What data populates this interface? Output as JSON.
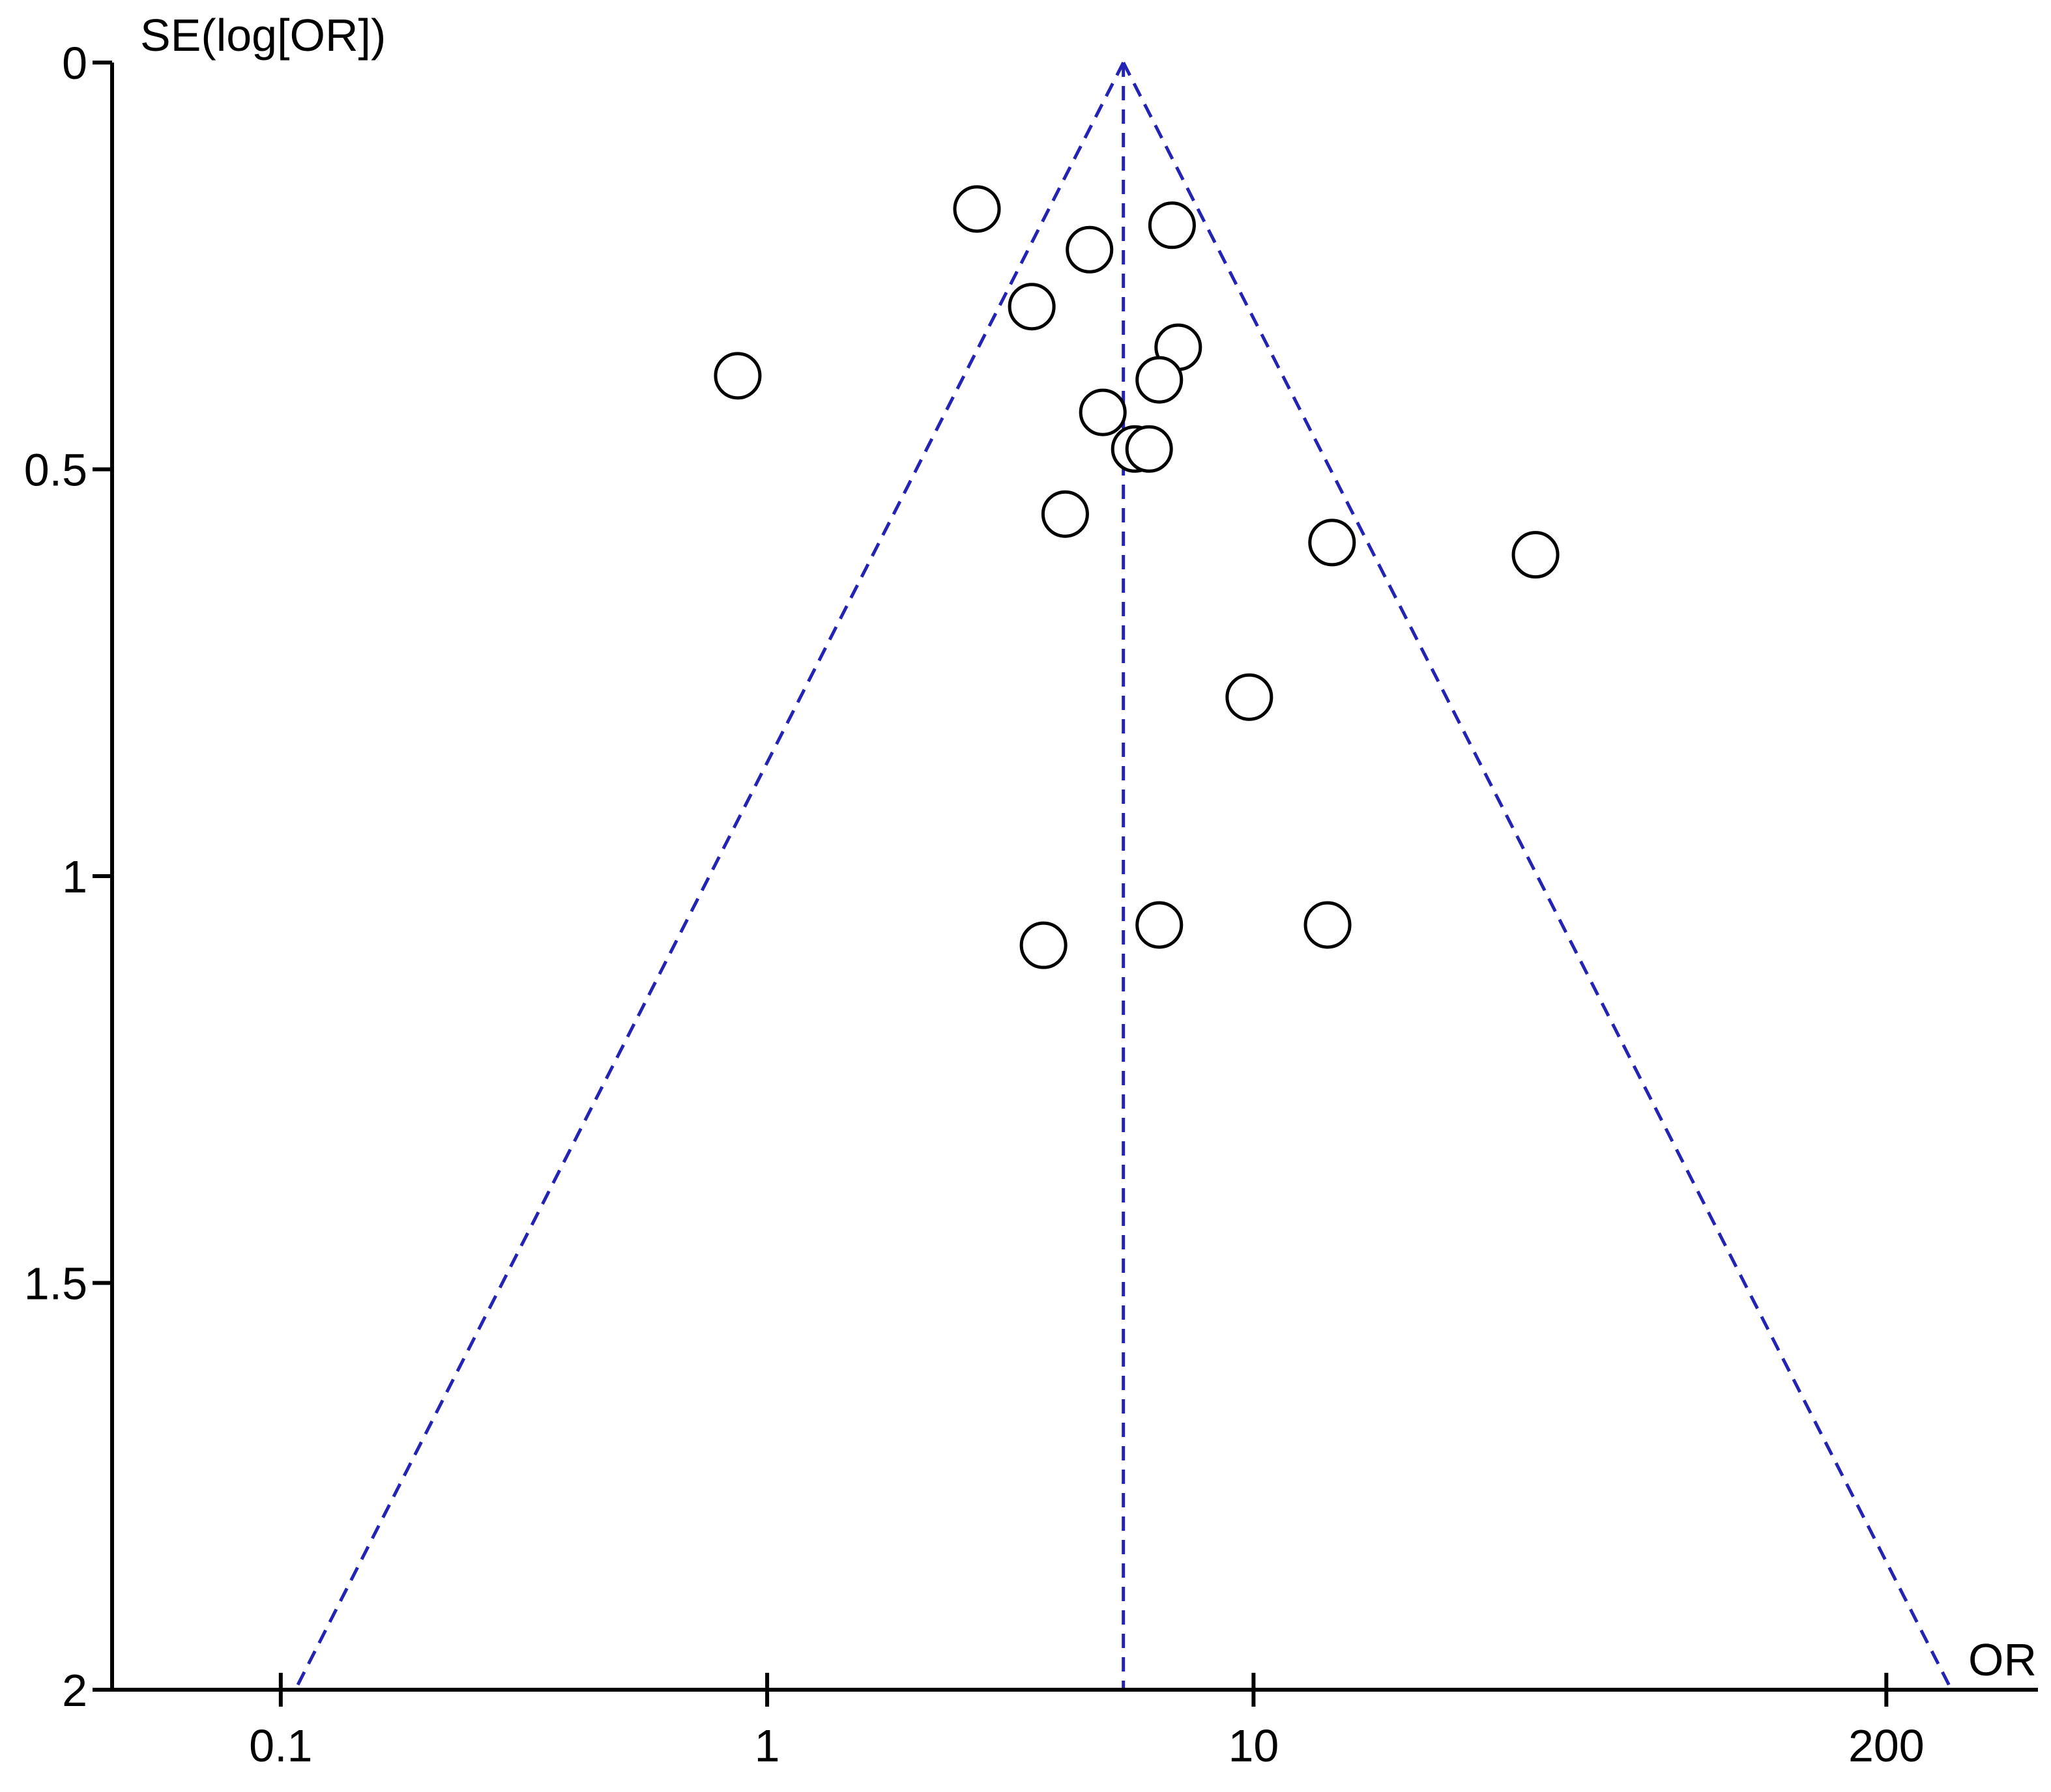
{
  "chart_data": {
    "type": "scatter",
    "subtype": "funnel-plot",
    "title": "",
    "xlabel": "OR",
    "ylabel": "SE(log[OR])",
    "x_scale": "log",
    "xlim": [
      0.045,
      410
    ],
    "ylim": [
      0,
      2
    ],
    "y_reversed": true,
    "grid": false,
    "x_ticks": [
      {
        "value": 0.1,
        "label": "0.1"
      },
      {
        "value": 1,
        "label": "1"
      },
      {
        "value": 10,
        "label": "10"
      },
      {
        "value": 200,
        "label": "200"
      }
    ],
    "y_ticks": [
      {
        "value": 0,
        "label": "0"
      },
      {
        "value": 0.5,
        "label": "0.5"
      },
      {
        "value": 1,
        "label": "1"
      },
      {
        "value": 1.5,
        "label": "1.5"
      },
      {
        "value": 2,
        "label": "2"
      }
    ],
    "pooled_or": 5.4,
    "colors": {
      "guide_lines": "#2323b4",
      "points": "#000000",
      "axes": "#000000"
    },
    "points": [
      {
        "x": 2.7,
        "y": 0.18
      },
      {
        "x": 4.6,
        "y": 0.23
      },
      {
        "x": 6.8,
        "y": 0.2
      },
      {
        "x": 3.5,
        "y": 0.3
      },
      {
        "x": 7.0,
        "y": 0.35
      },
      {
        "x": 0.87,
        "y": 0.385
      },
      {
        "x": 6.4,
        "y": 0.39
      },
      {
        "x": 4.9,
        "y": 0.43
      },
      {
        "x": 5.7,
        "y": 0.475
      },
      {
        "x": 6.1,
        "y": 0.475
      },
      {
        "x": 4.1,
        "y": 0.555
      },
      {
        "x": 14.5,
        "y": 0.59
      },
      {
        "x": 38.0,
        "y": 0.605
      },
      {
        "x": 9.8,
        "y": 0.78
      },
      {
        "x": 6.4,
        "y": 1.06
      },
      {
        "x": 14.2,
        "y": 1.06
      },
      {
        "x": 3.7,
        "y": 1.085
      }
    ]
  }
}
